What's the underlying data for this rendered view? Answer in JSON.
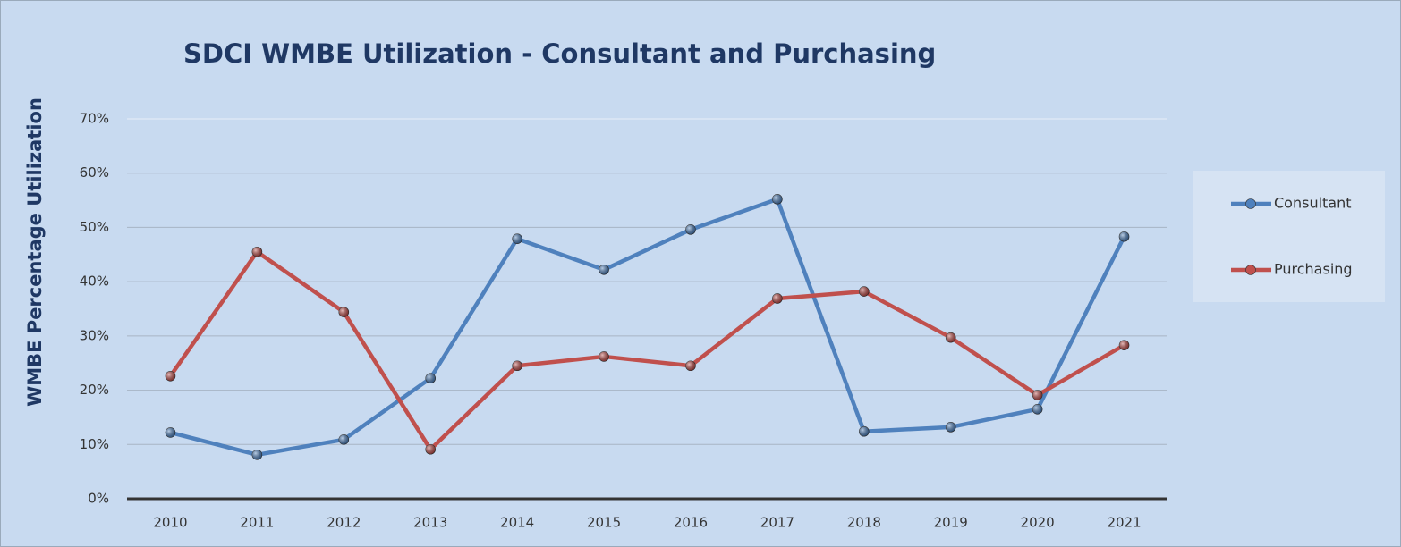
{
  "chart_data": {
    "type": "line",
    "title": "SDCI WMBE Utilization - Consultant and Purchasing",
    "y_label": "WMBE Percentage Utilization",
    "categories": [
      "2010",
      "2011",
      "2012",
      "2013",
      "2014",
      "2015",
      "2016",
      "2017",
      "2018",
      "2019",
      "2020",
      "2021"
    ],
    "series": [
      {
        "name": "Consultant",
        "color": "#4f81bd",
        "values": [
          12.2,
          8.1,
          10.9,
          22.2,
          47.9,
          42.2,
          49.6,
          55.2,
          12.4,
          13.2,
          16.5,
          48.3
        ]
      },
      {
        "name": "Purchasing",
        "color": "#c0504d",
        "values": [
          22.6,
          45.5,
          34.4,
          9.1,
          24.5,
          26.2,
          24.5,
          36.9,
          38.2,
          29.7,
          19.1,
          28.3
        ]
      }
    ],
    "ylim": [
      0,
      70
    ],
    "yticks": [
      {
        "value": 0,
        "label": "0%"
      },
      {
        "value": 10,
        "label": "10%"
      },
      {
        "value": 20,
        "label": "20%"
      },
      {
        "value": 30,
        "label": "30%"
      },
      {
        "value": 40,
        "label": "40%"
      },
      {
        "value": 50,
        "label": "50%"
      },
      {
        "value": 60,
        "label": "60%"
      },
      {
        "value": 70,
        "label": "70%"
      }
    ],
    "grid": true,
    "legend": "right"
  }
}
